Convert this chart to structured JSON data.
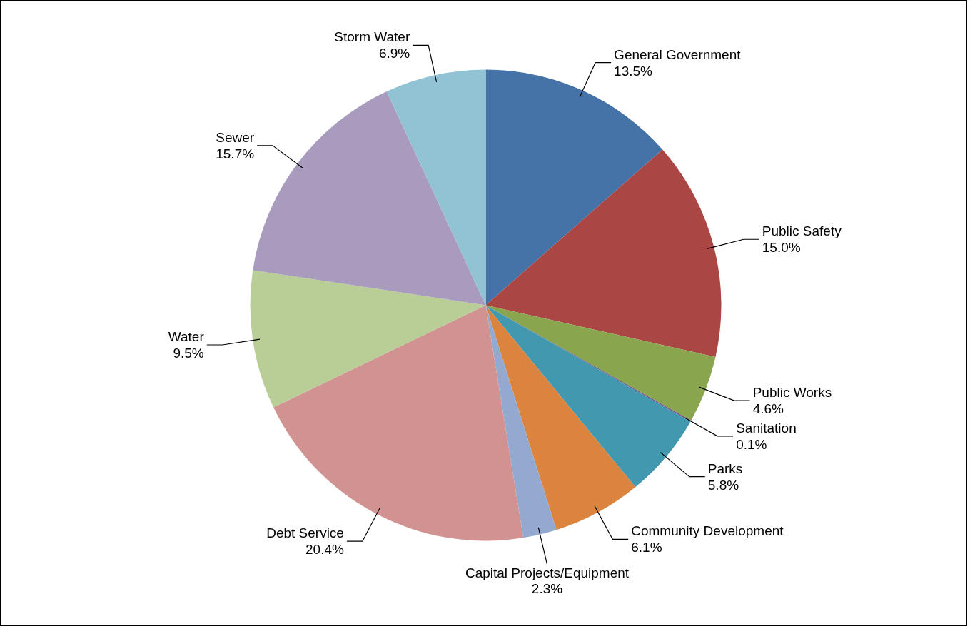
{
  "chart_data": {
    "type": "pie",
    "categories": [
      "General Government",
      "Public Safety",
      "Public Works",
      "Sanitation",
      "Parks",
      "Community Development",
      "Capital Projects/Equipment",
      "Debt Service",
      "Water",
      "Sewer",
      "Storm Water"
    ],
    "values": [
      13.5,
      15.0,
      4.6,
      0.1,
      5.8,
      6.1,
      2.3,
      20.4,
      9.5,
      15.7,
      6.9
    ],
    "value_labels": [
      "13.5%",
      "15.0%",
      "4.6%",
      "0.1%",
      "5.8%",
      "6.1%",
      "2.3%",
      "20.4%",
      "9.5%",
      "15.7%",
      "6.9%"
    ],
    "colors": [
      "#4572a7",
      "#aa4643",
      "#89a54e",
      "#71588f",
      "#4198af",
      "#db843d",
      "#93a9cf",
      "#d19392",
      "#b9cd96",
      "#a99bbd",
      "#92c3d4"
    ]
  }
}
